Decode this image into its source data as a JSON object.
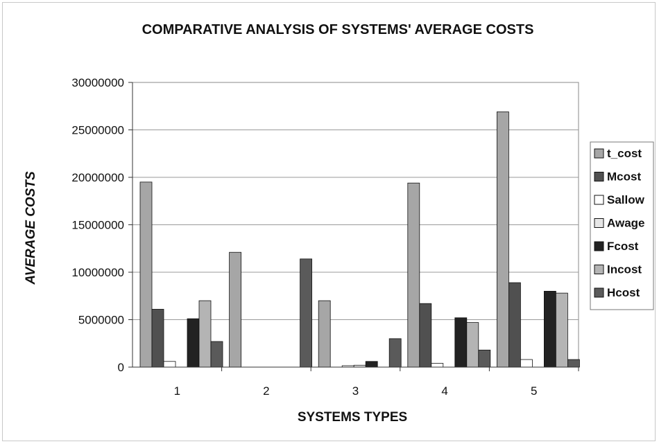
{
  "chart_data": {
    "type": "bar",
    "title": "COMPARATIVE ANALYSIS OF SYSTEMS' AVERAGE COSTS",
    "xlabel": "SYSTEMS TYPES",
    "ylabel": "AVERAGE COSTS",
    "categories": [
      "1",
      "2",
      "3",
      "4",
      "5"
    ],
    "ylim": [
      0,
      30000000
    ],
    "yticks": [
      0,
      5000000,
      10000000,
      15000000,
      20000000,
      25000000,
      30000000
    ],
    "grid": true,
    "legend_position": "right",
    "series": [
      {
        "name": "t_cost",
        "color": "#a6a6a6",
        "values": [
          19500000,
          12100000,
          7000000,
          19400000,
          26900000
        ]
      },
      {
        "name": "Mcost",
        "color": "#505050",
        "values": [
          6100000,
          0,
          0,
          6700000,
          8900000
        ]
      },
      {
        "name": "Sallow",
        "color": "#ffffff",
        "values": [
          600000,
          0,
          150000,
          400000,
          800000
        ]
      },
      {
        "name": "Awage",
        "color": "#e6e6e6",
        "values": [
          0,
          0,
          200000,
          0,
          0
        ]
      },
      {
        "name": "Fcost",
        "color": "#222222",
        "values": [
          5100000,
          0,
          600000,
          5200000,
          8000000
        ]
      },
      {
        "name": "Incost",
        "color": "#b4b4b4",
        "values": [
          7000000,
          0,
          0,
          4700000,
          7800000
        ]
      },
      {
        "name": "Hcost",
        "color": "#5a5a5a",
        "values": [
          2700000,
          11400000,
          3000000,
          1800000,
          800000
        ]
      }
    ]
  }
}
